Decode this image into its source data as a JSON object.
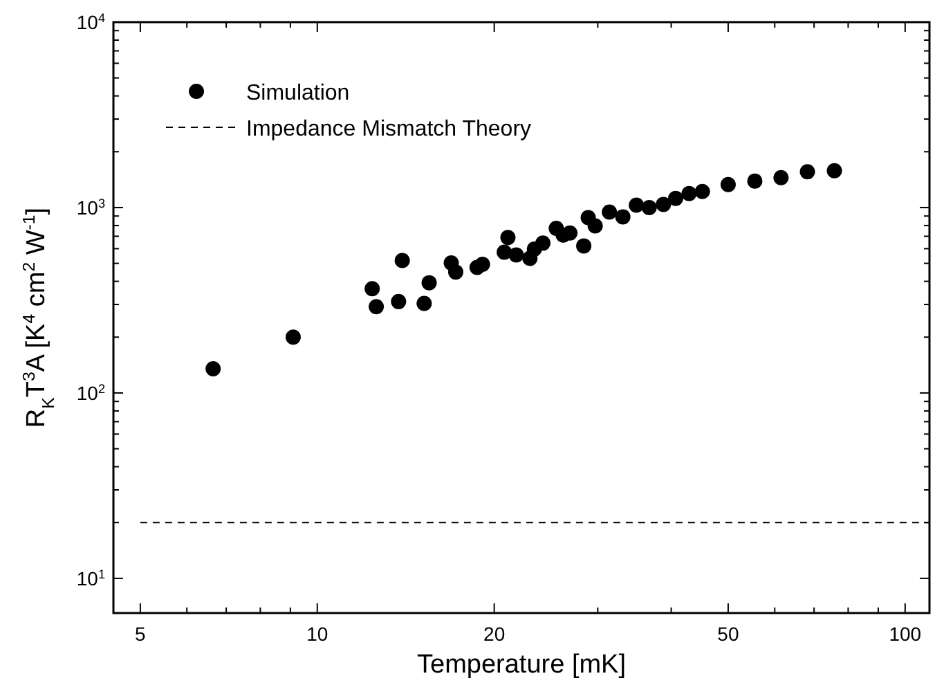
{
  "chart_data": {
    "type": "scatter",
    "xlabel": "Temperature [mK]",
    "ylabel": "R$_{K}$T$^{3}$A [K$^{4}$ cm$^{2}$ W$^{-1}$]",
    "log": "xy",
    "legend": "top left",
    "marker": "circle",
    "xlim": [
      4.5,
      110
    ],
    "ylim": [
      6.5,
      10000
    ],
    "xticks": [
      5,
      {
        "value": 6,
        "label": null
      },
      {
        "value": 7,
        "label": null
      },
      {
        "value": 8,
        "label": null
      },
      {
        "value": 9,
        "label": null
      },
      10,
      20,
      {
        "value": 30,
        "label": null
      },
      {
        "value": 40,
        "label": null
      },
      50,
      {
        "value": 60,
        "label": null
      },
      {
        "value": 70,
        "label": null
      },
      {
        "value": 80,
        "label": null
      },
      {
        "value": 90,
        "label": null
      },
      100
    ],
    "yticks": [
      {
        "value": 10,
        "label": "10$^{1}$"
      },
      {
        "value": 20,
        "label": null
      },
      {
        "value": 30,
        "label": null
      },
      {
        "value": 40,
        "label": null
      },
      {
        "value": 50,
        "label": null
      },
      {
        "value": 60,
        "label": null
      },
      {
        "value": 70,
        "label": null
      },
      {
        "value": 80,
        "label": null
      },
      {
        "value": 90,
        "label": null
      },
      {
        "value": 100,
        "label": "10$^{2}$"
      },
      {
        "value": 200,
        "label": null
      },
      {
        "value": 300,
        "label": null
      },
      {
        "value": 400,
        "label": null
      },
      {
        "value": 500,
        "label": null
      },
      {
        "value": 600,
        "label": null
      },
      {
        "value": 700,
        "label": null
      },
      {
        "value": 800,
        "label": null
      },
      {
        "value": 900,
        "label": null
      },
      {
        "value": 1000,
        "label": "10$^{3}$"
      },
      {
        "value": 2000,
        "label": null
      },
      {
        "value": 3000,
        "label": null
      },
      {
        "value": 4000,
        "label": null
      },
      {
        "value": 5000,
        "label": null
      },
      {
        "value": 6000,
        "label": null
      },
      {
        "value": 7000,
        "label": null
      },
      {
        "value": 8000,
        "label": null
      },
      {
        "value": 9000,
        "label": null
      },
      {
        "value": 10000,
        "label": "10$^{4}$"
      }
    ],
    "series": [
      {
        "name": "Simulation",
        "color": "#000000",
        "x": [
          6.65,
          9.1,
          12.4,
          12.6,
          13.95,
          13.75,
          15.2,
          15.5,
          16.9,
          17.2,
          18.7,
          19.1,
          21.1,
          20.8,
          21.8,
          23.0,
          23.4,
          24.2,
          25.5,
          26.2,
          26.9,
          28.4,
          28.9,
          29.7,
          31.4,
          33.1,
          34.9,
          36.7,
          38.8,
          40.7,
          42.9,
          45.2,
          50.0,
          55.5,
          61.5,
          68.2,
          75.8
        ],
        "values": [
          135,
          200,
          365,
          292,
          518,
          311,
          304,
          393,
          503,
          449,
          475,
          494,
          689,
          574,
          555,
          532,
          597,
          643,
          773,
          710,
          729,
          621,
          882,
          796,
          945,
          891,
          1030,
          1000,
          1040,
          1120,
          1190,
          1220,
          1330,
          1390,
          1450,
          1560,
          1580
        ]
      },
      {
        "name": "Impedance Mismatch Theory",
        "type": "line",
        "line_style": "dashed",
        "marker": "none",
        "color": "#000000",
        "x": [
          5,
          110
        ],
        "values": [
          20,
          20
        ]
      }
    ]
  }
}
